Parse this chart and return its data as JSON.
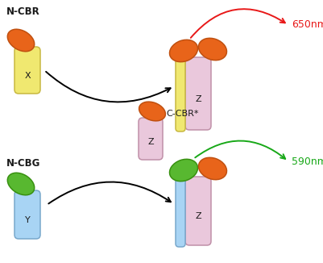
{
  "bg_color": "#ffffff",
  "orange_color": "#E8641A",
  "orange_outline": "#C05010",
  "yellow_color": "#F0E870",
  "yellow_outline": "#C8B840",
  "pink_color": "#EAC8DC",
  "pink_outline": "#C090A8",
  "blue_color": "#A8D4F4",
  "blue_outline": "#78A8CC",
  "green_color": "#58B830",
  "green_outline": "#389010",
  "text_dark": "#1a1a1a",
  "red_color": "#E81818",
  "green_emit_color": "#18A818",
  "label_ncbr": "N-CBR",
  "label_ncbg": "N-CBG",
  "label_ccbr": "C-CBR*",
  "label_x": "X",
  "label_y": "Y",
  "label_z": "Z",
  "label_650nm": "650nm",
  "label_590nm": "590nm",
  "fig_w": 4.01,
  "fig_h": 3.26,
  "dpi": 100
}
